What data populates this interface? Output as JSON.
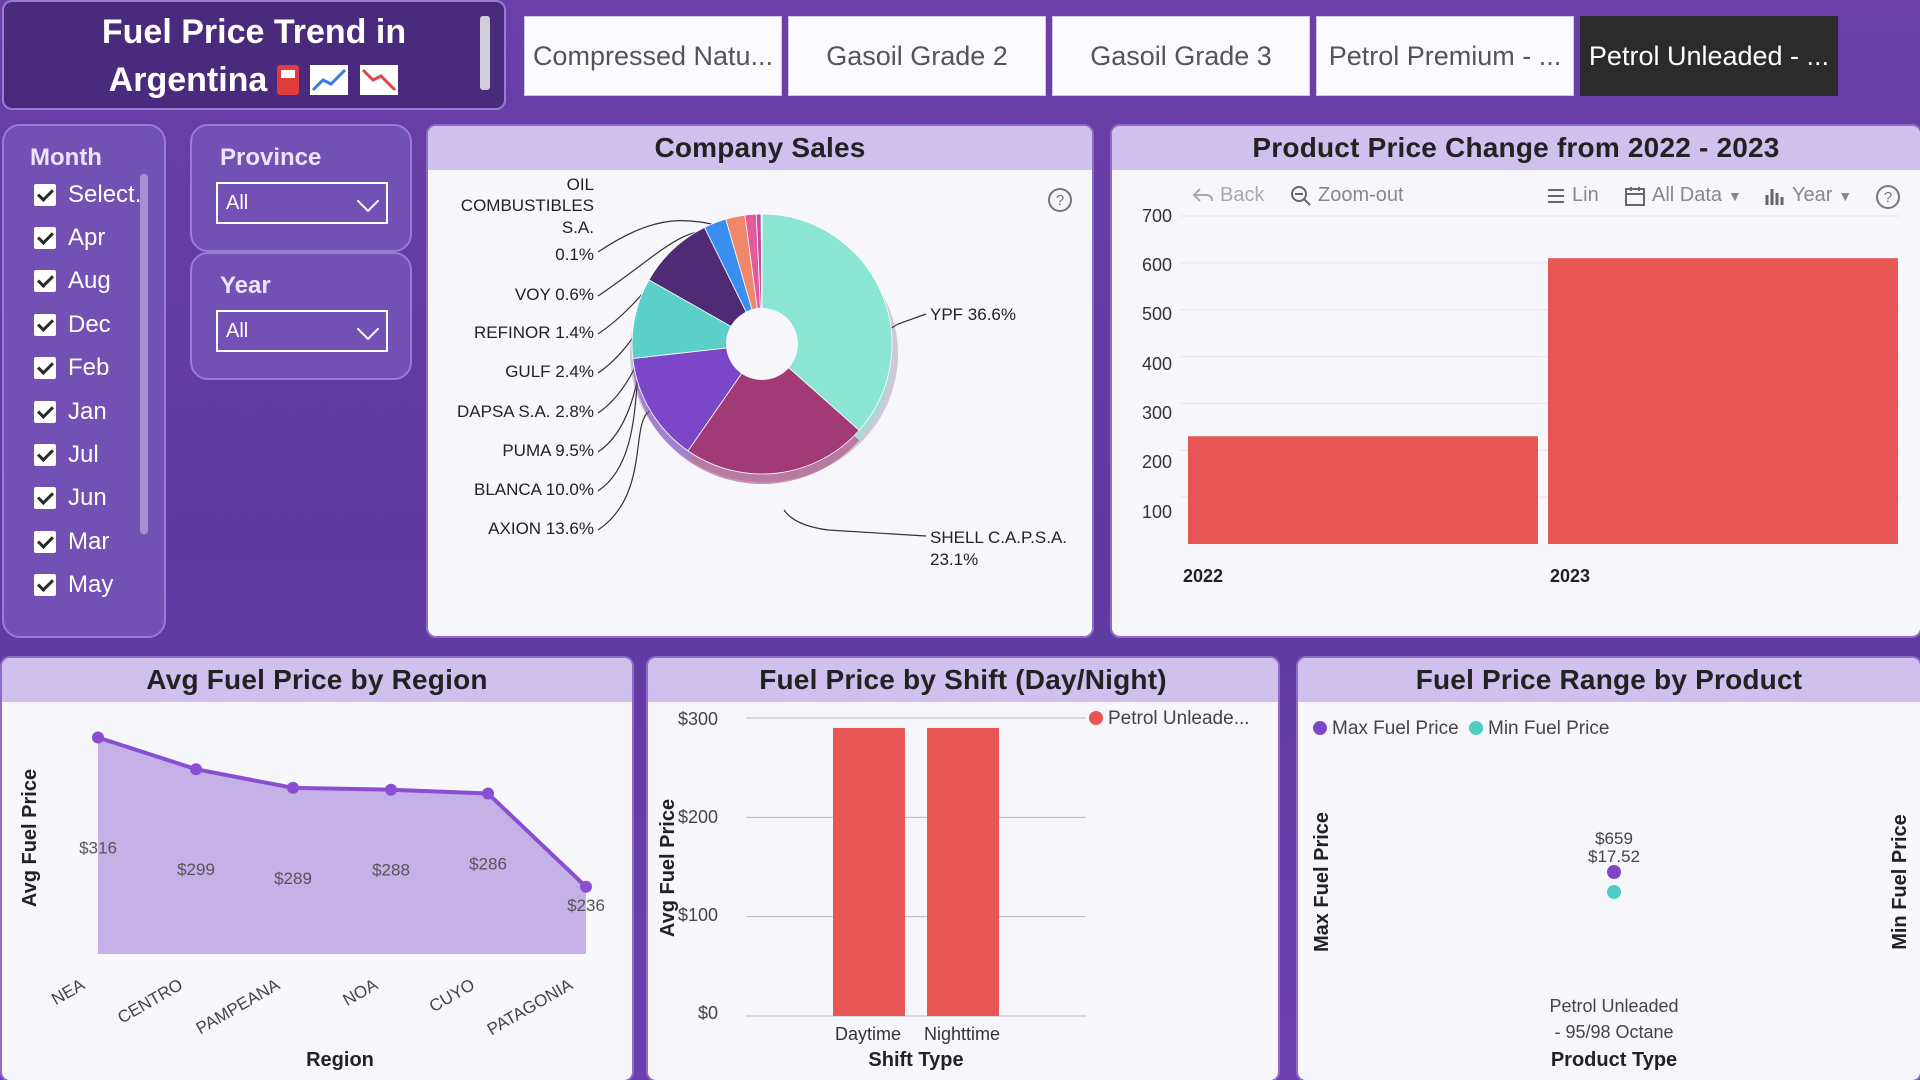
{
  "title": {
    "line1": "Fuel Price Trend in",
    "line2": "Argentina",
    "icons": [
      "fuel-pump-icon",
      "chart-up-icon",
      "chart-down-icon"
    ]
  },
  "tabs": [
    {
      "label": "Compressed Natu...",
      "active": false
    },
    {
      "label": "Gasoil Grade 2",
      "active": false
    },
    {
      "label": "Gasoil Grade 3",
      "active": false
    },
    {
      "label": "Petrol Premium - ...",
      "active": false
    },
    {
      "label": "Petrol Unleaded - ...",
      "active": true
    }
  ],
  "month_slicer": {
    "label": "Month",
    "items": [
      "Select.",
      "Apr",
      "Aug",
      "Dec",
      "Feb",
      "Jan",
      "Jul",
      "Jun",
      "Mar",
      "May"
    ]
  },
  "province_slicer": {
    "label": "Province",
    "value": "All"
  },
  "year_slicer": {
    "label": "Year",
    "value": "All"
  },
  "company_sales": {
    "title": "Company Sales",
    "help_icon": "question-circle-icon",
    "labels": {
      "oil_l1": "OIL",
      "oil_l2": "COMBUSTIBLES",
      "oil_l3": "S.A.",
      "oil_l4": "0.1%",
      "voy": "VOY 0.6%",
      "refinor": "REFINOR 1.4%",
      "gulf": "GULF 2.4%",
      "dapsa": "DAPSA S.A. 2.8%",
      "puma": "PUMA 9.5%",
      "blanca": "BLANCA 10.0%",
      "axion": "AXION 13.6%",
      "ypf": "YPF 36.6%",
      "shell_l1": "SHELL C.A.P.S.A.",
      "shell_l2": "23.1%"
    }
  },
  "chart_data": [
    {
      "type": "pie",
      "title": "Company Sales",
      "slices": [
        {
          "name": "YPF",
          "value": 36.6,
          "color": "#8ae6d3"
        },
        {
          "name": "SHELL C.A.P.S.A.",
          "value": 23.1,
          "color": "#a33a78"
        },
        {
          "name": "AXION",
          "value": 13.6,
          "color": "#7b47c8"
        },
        {
          "name": "BLANCA",
          "value": 10.0,
          "color": "#5ccfc9"
        },
        {
          "name": "PUMA",
          "value": 9.5,
          "color": "#4f2a75"
        },
        {
          "name": "DAPSA S.A.",
          "value": 2.8,
          "color": "#3a8ef0"
        },
        {
          "name": "GULF",
          "value": 2.4,
          "color": "#f0866a"
        },
        {
          "name": "REFINOR",
          "value": 1.4,
          "color": "#e45a9a"
        },
        {
          "name": "VOY",
          "value": 0.6,
          "color": "#c34fa0"
        },
        {
          "name": "OIL COMBUSTIBLES S.A.",
          "value": 0.1,
          "color": "#f5c04a"
        }
      ]
    },
    {
      "type": "bar",
      "title": "Product Price Change from 2022 - 2023",
      "categories": [
        "2022",
        "2023"
      ],
      "values": [
        230,
        610
      ],
      "ylim": [
        0,
        700
      ],
      "yticks": [
        100,
        200,
        300,
        400,
        500,
        600,
        700
      ],
      "color": "#e85555"
    },
    {
      "type": "area",
      "title": "Avg Fuel Price by Region",
      "xlabel": "Region",
      "ylabel": "Avg Fuel Price",
      "categories": [
        "NEA",
        "CENTRO",
        "PAMPEANA",
        "NOA",
        "CUYO",
        "PATAGONIA"
      ],
      "values": [
        316,
        299,
        289,
        288,
        286,
        236
      ],
      "value_labels": [
        "$316",
        "$299",
        "$289",
        "$288",
        "$286",
        "$236"
      ],
      "color": "#8a4fd0"
    },
    {
      "type": "bar",
      "title": "Fuel Price by Shift (Day/Night)",
      "xlabel": "Shift Type",
      "ylabel": "Avg Fuel Price",
      "categories": [
        "Daytime",
        "Nighttime"
      ],
      "series": [
        {
          "name": "Petrol Unleade...",
          "values": [
            290,
            290
          ]
        }
      ],
      "ylim": [
        0,
        300
      ],
      "yticks": [
        "$0",
        "$100",
        "$200",
        "$300"
      ],
      "color": "#e85555"
    },
    {
      "type": "scatter",
      "title": "Fuel Price Range by Product",
      "xlabel": "Product Type",
      "ylabel": "Max Fuel Price",
      "ylabel2": "Min Fuel Price",
      "legend": [
        {
          "name": "Max Fuel Price",
          "color": "#7b47c8"
        },
        {
          "name": "Min Fuel Price",
          "color": "#4fcdc4"
        }
      ],
      "category_line1": "Petrol Unleaded",
      "category_line2": "- 95/98 Octane",
      "max_label": "$659",
      "min_label": "$17.52",
      "values": {
        "max": 659,
        "min": 17.52
      }
    }
  ],
  "price_change": {
    "title": "Product Price Change from 2022 - 2023",
    "toolbar": {
      "back": "Back",
      "zoom": "Zoom-out",
      "lin": "Lin",
      "all_data": "All Data",
      "year": "Year"
    },
    "ytick_labels": [
      "700",
      "600",
      "500",
      "400",
      "300",
      "200",
      "100"
    ],
    "x_labels": [
      "2022",
      "2023"
    ]
  },
  "region": {
    "title": "Avg Fuel Price by Region",
    "xlabel": "Region",
    "ylabel": "Avg Fuel Price"
  },
  "shift": {
    "title": "Fuel Price by Shift (Day/Night)",
    "xlabel": "Shift Type",
    "ylabel": "Avg Fuel Price",
    "legend": "Petrol Unleade...",
    "yticks": [
      "$300",
      "$200",
      "$100",
      "$0"
    ],
    "x_labels": [
      "Daytime",
      "Nighttime"
    ]
  },
  "range": {
    "title": "Fuel Price Range by Product",
    "legend_max": "Max Fuel Price",
    "legend_min": "Min Fuel Price",
    "ylabel": "Max Fuel Price",
    "ylabel2": "Min Fuel Price",
    "xlabel": "Product Type",
    "cat1": "Petrol Unleaded",
    "cat2": "- 95/98 Octane",
    "max_label": "$659",
    "min_label": "$17.52"
  }
}
